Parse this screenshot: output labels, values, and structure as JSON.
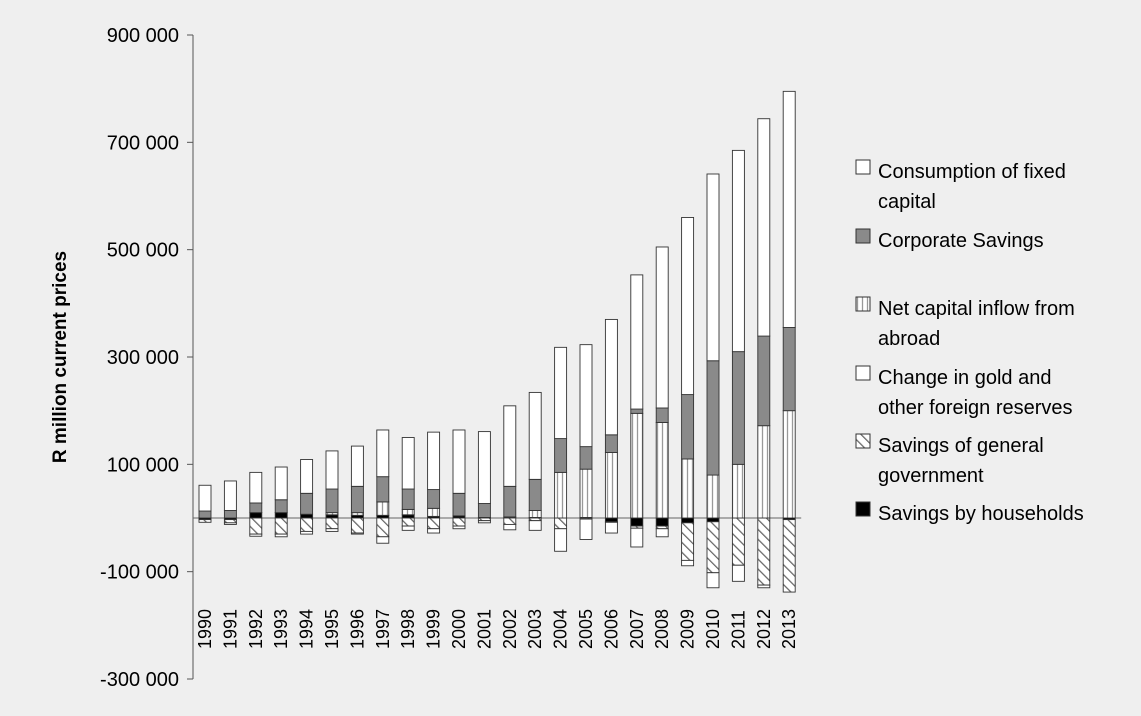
{
  "chart_data": {
    "type": "bar",
    "stacked": true,
    "title": "",
    "xlabel": "",
    "ylabel": "R million current prices",
    "ylim": [
      -300000,
      900000
    ],
    "yticks": [
      -300000,
      -100000,
      100000,
      300000,
      500000,
      700000,
      900000
    ],
    "ytick_labels": [
      "-300 000",
      "-100 000",
      "100 000",
      "300 000",
      "500 000",
      "700 000",
      "900 000"
    ],
    "grid": false,
    "legend_position": "right",
    "categories": [
      "1990",
      "1991",
      "1992",
      "1993",
      "1994",
      "1995",
      "1996",
      "1997",
      "1998",
      "1999",
      "2000",
      "2001",
      "2002",
      "2003",
      "2004",
      "2005",
      "2006",
      "2007",
      "2008",
      "2009",
      "2010",
      "2011",
      "2012",
      "2013"
    ],
    "series": [
      {
        "name": "Savings by households",
        "pattern": "solid-black",
        "color": "#000000",
        "values": [
          -3000,
          -3000,
          10000,
          10000,
          7000,
          6000,
          5000,
          5000,
          6000,
          3000,
          4000,
          1000,
          2000,
          1000,
          0,
          1000,
          -7000,
          -15000,
          -15000,
          -9000,
          -7000,
          0,
          0,
          -3000
        ]
      },
      {
        "name": "Savings of general government",
        "pattern": "diagonal-hatch",
        "color": "#ffffff",
        "values": [
          -5000,
          -6000,
          -30000,
          -30000,
          -25000,
          -20000,
          -28000,
          -35000,
          -15000,
          -20000,
          -15000,
          -5000,
          -12000,
          -5000,
          -20000,
          -2000,
          -1000,
          -4000,
          -5000,
          -70000,
          -95000,
          -88000,
          -125000,
          -135000
        ]
      },
      {
        "name": "Change in gold and other foreign reserves",
        "pattern": "plain",
        "color": "#ffffff",
        "values": [
          0,
          -3000,
          -4000,
          -5000,
          -5000,
          -5000,
          -2000,
          -12000,
          -8000,
          -8000,
          -5000,
          -4000,
          -10000,
          -18000,
          -42000,
          -38000,
          -20000,
          -35000,
          -15000,
          -10000,
          -28000,
          -30000,
          -5000,
          0
        ]
      },
      {
        "name": "Net capital inflow from abroad",
        "pattern": "vertical-lines",
        "color": "#ffffff",
        "values": [
          0,
          0,
          0,
          0,
          0,
          4000,
          5000,
          25000,
          10000,
          15000,
          0,
          0,
          0,
          13000,
          85000,
          90000,
          122000,
          195000,
          178000,
          110000,
          80000,
          100000,
          172000,
          200000
        ]
      },
      {
        "name": "Corporate Savings",
        "pattern": "solid-grey",
        "color": "#8a8a8a",
        "values": [
          13000,
          14000,
          18000,
          24000,
          39000,
          44000,
          49000,
          47000,
          38000,
          35000,
          42000,
          26000,
          57000,
          58000,
          63000,
          42000,
          33000,
          8000,
          27000,
          120000,
          213000,
          210000,
          167000,
          155000
        ]
      },
      {
        "name": "Consumption of fixed capital",
        "pattern": "plain",
        "color": "#ffffff",
        "values": [
          48000,
          55000,
          57000,
          61000,
          63000,
          71000,
          75000,
          87000,
          96000,
          107000,
          118000,
          134000,
          150000,
          162000,
          170000,
          190000,
          215000,
          250000,
          300000,
          330000,
          348000,
          375000,
          405000,
          440000
        ]
      }
    ],
    "legend": [
      {
        "label": "Consumption of fixed capital",
        "pattern": "plain"
      },
      {
        "label": "Corporate Savings",
        "pattern": "solid-grey"
      },
      {
        "label": "Net capital inflow from abroad",
        "pattern": "vertical-lines"
      },
      {
        "label": "Change in gold and other foreign reserves",
        "pattern": "plain"
      },
      {
        "label": "Savings of general government",
        "pattern": "diagonal-hatch"
      },
      {
        "label": "Savings by households",
        "pattern": "solid-black"
      }
    ]
  }
}
